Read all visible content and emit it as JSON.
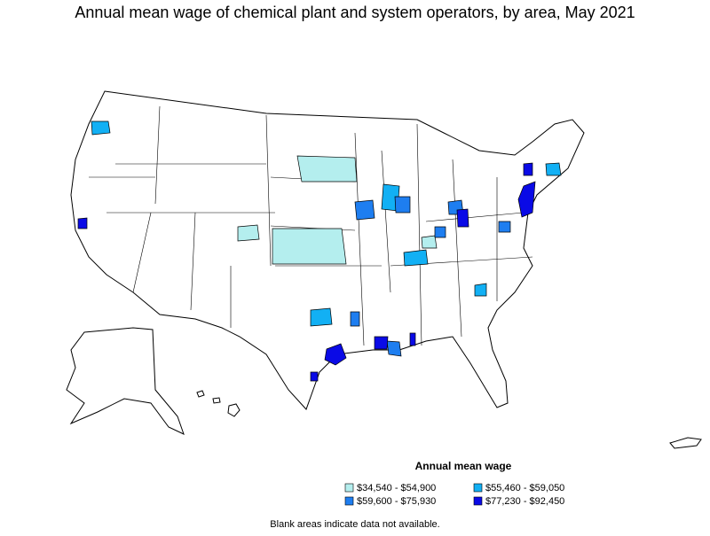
{
  "title": "Annual mean wage of chemical plant and system operators, by area, May 2021",
  "legend": {
    "title": "Annual mean wage",
    "items": [
      {
        "label": "$34,540 - $54,900",
        "color": "#b4eeee"
      },
      {
        "label": "$55,460 - $59,050",
        "color": "#12b0f4"
      },
      {
        "label": "$59,600 - $75,930",
        "color": "#1e7ef0"
      },
      {
        "label": "$77,230 - $92,450",
        "color": "#0a0ae6"
      }
    ]
  },
  "note": "Blank areas indicate data not available."
}
